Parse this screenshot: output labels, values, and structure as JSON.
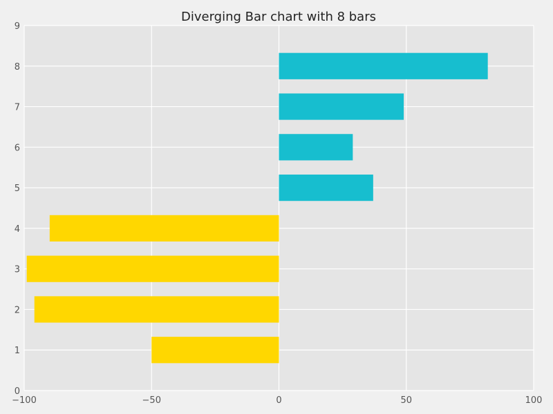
{
  "chart_data": {
    "type": "bar",
    "orientation": "horizontal",
    "title": "Diverging Bar chart with 8 bars",
    "xlabel": "",
    "ylabel": "",
    "xlim": [
      -100,
      100
    ],
    "ylim": [
      0,
      9
    ],
    "x_ticks": [
      -100,
      -50,
      0,
      50,
      100
    ],
    "x_tick_labels": [
      "−100",
      "−50",
      "0",
      "50",
      "100"
    ],
    "y_ticks": [
      0,
      1,
      2,
      3,
      4,
      5,
      6,
      7,
      8,
      9
    ],
    "y_tick_labels": [
      "0",
      "1",
      "2",
      "3",
      "4",
      "5",
      "6",
      "7",
      "8",
      "9"
    ],
    "categories": [
      1,
      2,
      3,
      4,
      5,
      6,
      7,
      8
    ],
    "values": [
      -50,
      -96,
      -99,
      -90,
      37,
      29,
      49,
      82
    ],
    "bar_height": 0.65,
    "grid": true,
    "colors": {
      "negative": "#ffd700",
      "positive": "#17becf",
      "plot_background": "#e5e5e5",
      "grid": "#ffffff",
      "figure_background": "#f0f0f0"
    }
  }
}
